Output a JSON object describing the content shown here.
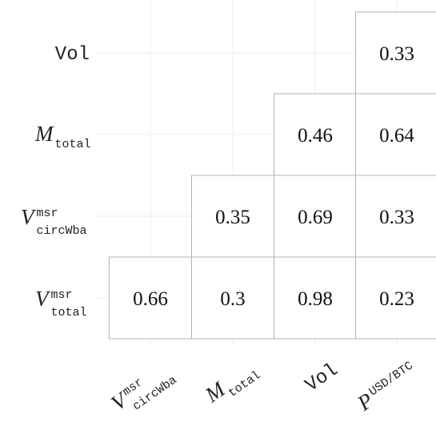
{
  "chart_data": {
    "type": "heatmap",
    "title": "",
    "xlabel": "",
    "ylabel": "",
    "grid": true,
    "x_categories": [
      {
        "main": "V",
        "sup": "msr",
        "sub": "circWba"
      },
      {
        "main": "M",
        "sup": "",
        "sub": "total"
      },
      {
        "main": "Vol",
        "sup": "",
        "sub": ""
      },
      {
        "main": "P",
        "sup": "USD/BTC",
        "sub": ""
      }
    ],
    "y_categories": [
      {
        "main": "Vol",
        "sup": "",
        "sub": ""
      },
      {
        "main": "M",
        "sup": "",
        "sub": "total"
      },
      {
        "main": "V",
        "sup": "msr",
        "sub": "circWba"
      },
      {
        "main": "V",
        "sup": "msr",
        "sub": "total"
      }
    ],
    "cells": [
      {
        "row": 0,
        "col": 3,
        "value": "0.33"
      },
      {
        "row": 1,
        "col": 2,
        "value": "0.46"
      },
      {
        "row": 1,
        "col": 3,
        "value": "0.64"
      },
      {
        "row": 2,
        "col": 1,
        "value": "0.35"
      },
      {
        "row": 2,
        "col": 2,
        "value": "0.69"
      },
      {
        "row": 2,
        "col": 3,
        "value": "0.33"
      },
      {
        "row": 3,
        "col": 0,
        "value": "0.66"
      },
      {
        "row": 3,
        "col": 1,
        "value": "0.3"
      },
      {
        "row": 3,
        "col": 2,
        "value": "0.98"
      },
      {
        "row": 3,
        "col": 3,
        "value": "0.23"
      }
    ],
    "colors": {
      "grid": "#ebebeb",
      "cell_border": "#b3b3b3",
      "cell_fill": "#ffffff",
      "text": "#111111"
    }
  }
}
